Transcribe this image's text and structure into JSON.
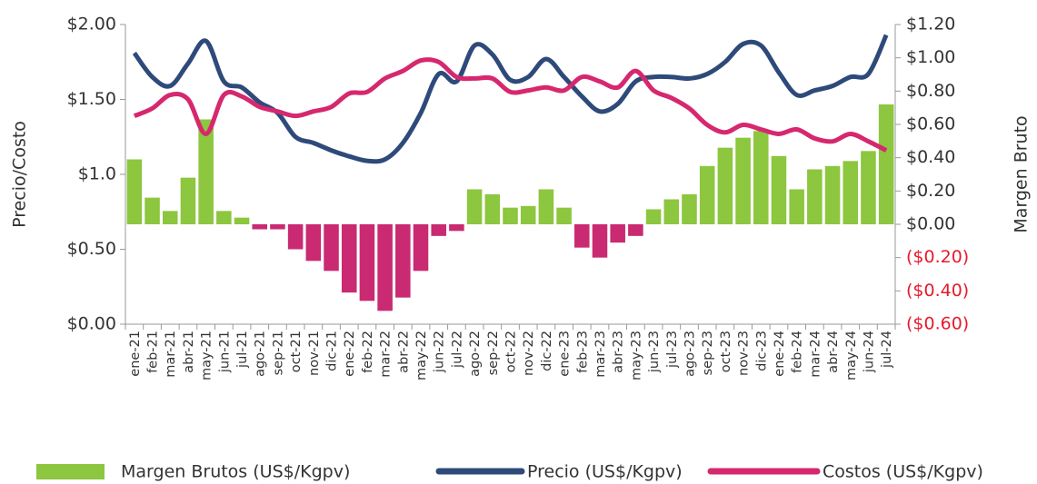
{
  "chart_data": {
    "type": "combo",
    "categories": [
      "ene-21",
      "feb-21",
      "mar-21",
      "abr-21",
      "may-21",
      "jun-21",
      "jul-21",
      "ago-21",
      "sep-21",
      "oct-21",
      "nov-21",
      "dic-21",
      "ene-22",
      "feb-22",
      "mar-22",
      "abr-22",
      "may-22",
      "jun-22",
      "jul-22",
      "ago-22",
      "sep-22",
      "oct-22",
      "nov-22",
      "dic-22",
      "ene-23",
      "feb-23",
      "mar-23",
      "abr-23",
      "may-23",
      "jun-23",
      "jul-23",
      "ago-23",
      "sep-23",
      "oct-23",
      "nov-23",
      "dic-23",
      "ene-24",
      "feb-24",
      "mar-24",
      "abr-24",
      "may-24",
      "jun-24",
      "jul-24"
    ],
    "ylabel": "Precio/Costo",
    "y2label": "Margen Bruto",
    "ylim": [
      0,
      2.0
    ],
    "yticks": [
      {
        "value": 0,
        "label": "$0.00"
      },
      {
        "value": 0.5,
        "label": "$0.50"
      },
      {
        "value": 1.0,
        "label": "$1.0"
      },
      {
        "value": 1.5,
        "label": "$1.50"
      },
      {
        "value": 2.0,
        "label": "$2.00"
      }
    ],
    "y2lim": [
      -0.6,
      1.2
    ],
    "y2ticks": [
      {
        "value": 1.2,
        "label": "$1.20"
      },
      {
        "value": 1.0,
        "label": "$1.00"
      },
      {
        "value": 0.8,
        "label": "$0.80"
      },
      {
        "value": 0.6,
        "label": "$0.60"
      },
      {
        "value": 0.4,
        "label": "$0.40"
      },
      {
        "value": 0.2,
        "label": "$0.20"
      },
      {
        "value": 0,
        "label": "$0.00"
      },
      {
        "value": -0.2,
        "label": "($0.20)"
      },
      {
        "value": -0.4,
        "label": "($0.40)"
      },
      {
        "value": -0.6,
        "label": "($0.60)"
      }
    ],
    "negative_tick_color": "#e8192c",
    "series": [
      {
        "name": "Margen Brutos (US$/Kgpv)",
        "type": "bar",
        "axis": "y2",
        "color": "#8dc63f",
        "negative_color": "#c92a72",
        "values": [
          0.39,
          0.16,
          0.08,
          0.28,
          0.63,
          0.08,
          0.04,
          -0.03,
          -0.03,
          -0.15,
          -0.22,
          -0.28,
          -0.41,
          -0.46,
          -0.52,
          -0.44,
          -0.28,
          -0.07,
          -0.04,
          0.21,
          0.18,
          0.1,
          0.11,
          0.21,
          0.1,
          -0.14,
          -0.2,
          -0.11,
          -0.07,
          0.09,
          0.15,
          0.18,
          0.35,
          0.46,
          0.52,
          0.56,
          0.41,
          0.21,
          0.33,
          0.35,
          0.38,
          0.44,
          0.72
        ]
      },
      {
        "name": "Precio (US$/Kgpv)",
        "type": "line",
        "color": "#2e4a7a",
        "values": [
          1.81,
          1.65,
          1.59,
          1.74,
          1.89,
          1.62,
          1.58,
          1.48,
          1.41,
          1.25,
          1.21,
          1.16,
          1.12,
          1.09,
          1.1,
          1.21,
          1.41,
          1.67,
          1.62,
          1.86,
          1.8,
          1.63,
          1.65,
          1.77,
          1.65,
          1.52,
          1.42,
          1.47,
          1.62,
          1.65,
          1.65,
          1.64,
          1.67,
          1.75,
          1.87,
          1.86,
          1.68,
          1.53,
          1.56,
          1.59,
          1.65,
          1.67,
          1.93
        ]
      },
      {
        "name": "Costos (US$/Kgpv)",
        "type": "line",
        "color": "#d6286e",
        "values": [
          1.39,
          1.44,
          1.53,
          1.5,
          1.27,
          1.53,
          1.52,
          1.45,
          1.42,
          1.39,
          1.42,
          1.45,
          1.54,
          1.55,
          1.64,
          1.69,
          1.76,
          1.75,
          1.65,
          1.64,
          1.64,
          1.55,
          1.56,
          1.58,
          1.56,
          1.65,
          1.62,
          1.58,
          1.69,
          1.56,
          1.51,
          1.44,
          1.33,
          1.28,
          1.33,
          1.3,
          1.27,
          1.3,
          1.24,
          1.22,
          1.27,
          1.22,
          1.16
        ]
      }
    ]
  }
}
